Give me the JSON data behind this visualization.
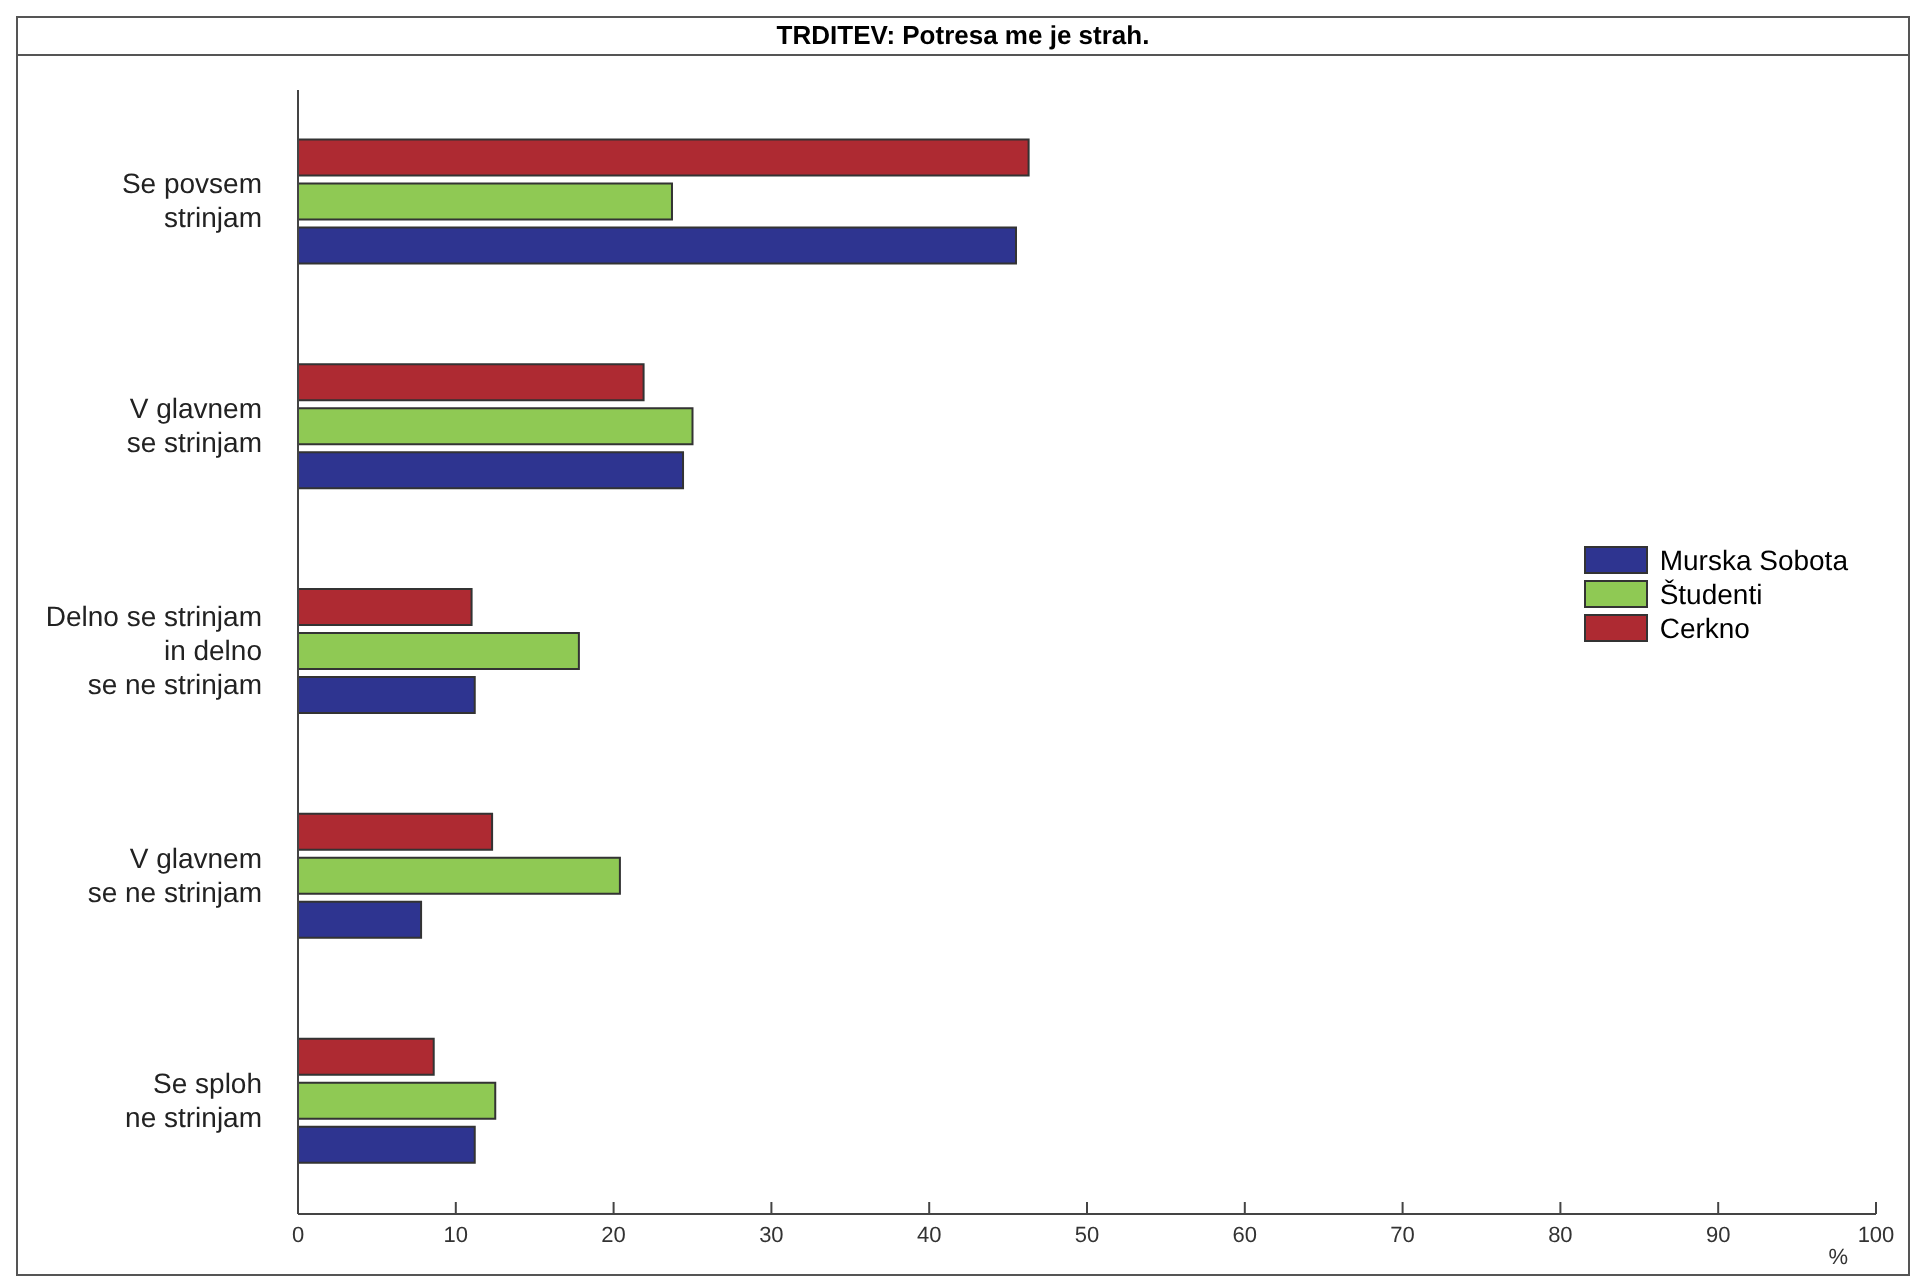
{
  "chart_data": {
    "type": "bar",
    "orientation": "horizontal",
    "title": "TRDITEV: Potresa me je strah.",
    "xlabel": "%",
    "categories": [
      "Se povsem\nstrinjam",
      "V glavnem\nse strinjam",
      "Delno se strinjam\nin delno\nse ne strinjam",
      "V glavnem\nse ne strinjam",
      "Se sploh\nne strinjam"
    ],
    "series": [
      {
        "name": "Cerkno",
        "color": "#ae2a32",
        "values": [
          46.3,
          21.9,
          11.0,
          12.3,
          8.6
        ]
      },
      {
        "name": "Študenti",
        "color": "#8fc954",
        "values": [
          23.7,
          25.0,
          17.8,
          20.4,
          12.5
        ]
      },
      {
        "name": "Murska Sobota",
        "color": "#2e3490",
        "values": [
          45.5,
          24.4,
          11.2,
          7.8,
          11.2
        ]
      }
    ],
    "xlim": [
      0,
      100
    ],
    "xticks": [
      0,
      10,
      20,
      30,
      40,
      50,
      60,
      70,
      80,
      90,
      100
    ],
    "grid": false,
    "legend": "right"
  }
}
